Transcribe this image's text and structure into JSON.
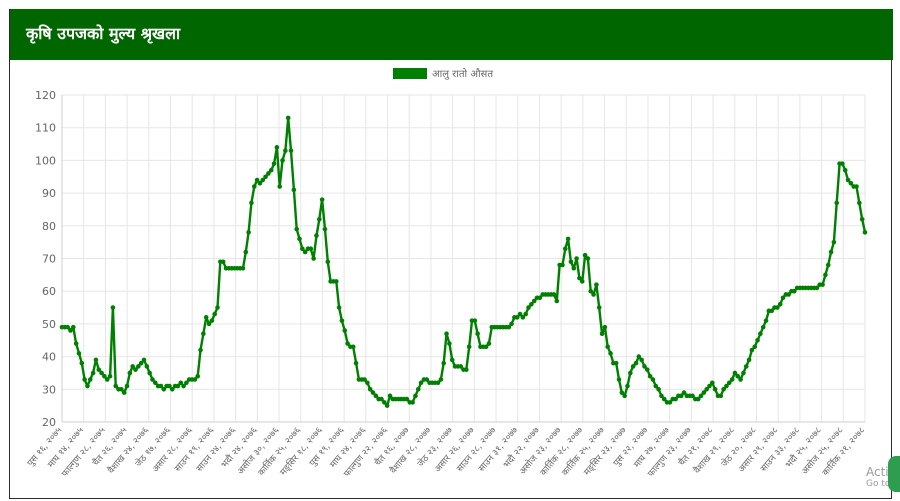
{
  "header": {
    "title": "कृषि उपजको मुल्य श्रृखला"
  },
  "colors": {
    "header_bg": "#006600",
    "series": "#008000",
    "grid": "#e6e6e6"
  },
  "watermark": {
    "line1": "Activ",
    "line2": "Go to"
  },
  "chart_data": {
    "type": "line",
    "title": "",
    "ylim": [
      20,
      120
    ],
    "yticks": [
      20,
      30,
      40,
      50,
      60,
      70,
      80,
      90,
      100,
      110,
      120
    ],
    "grid": true,
    "legend_position": "top-center",
    "series": [
      {
        "name": "आलु रातो औसत",
        "values": [
          49,
          49,
          49,
          48,
          49,
          44,
          41,
          38,
          33,
          31,
          33,
          35,
          39,
          36,
          35,
          34,
          33,
          34,
          55,
          31,
          30,
          30,
          29,
          31,
          35,
          37,
          36,
          37,
          38,
          39,
          37,
          35,
          33,
          32,
          31,
          31,
          30,
          31,
          31,
          30,
          31,
          31,
          32,
          31,
          32,
          33,
          33,
          33,
          34,
          42,
          47,
          52,
          50,
          51,
          53,
          55,
          69,
          69,
          67,
          67,
          67,
          67,
          67,
          67,
          67,
          72,
          78,
          87,
          92,
          94,
          93,
          94,
          95,
          96,
          97,
          99,
          104,
          92,
          100,
          103,
          113,
          103,
          91,
          79,
          76,
          73,
          72,
          73,
          73,
          70,
          77,
          82,
          88,
          79,
          69,
          63,
          63,
          63,
          55,
          51,
          48,
          44,
          43,
          43,
          38,
          33,
          33,
          33,
          32,
          30,
          29,
          28,
          27,
          27,
          26,
          25,
          28,
          27,
          27,
          27,
          27,
          27,
          27,
          26,
          26,
          28,
          30,
          32,
          33,
          33,
          32,
          32,
          32,
          32,
          33,
          38,
          47,
          44,
          39,
          37,
          37,
          37,
          36,
          36,
          43,
          51,
          51,
          47,
          43,
          43,
          43,
          44,
          49,
          49,
          49,
          49,
          49,
          49,
          49,
          50,
          52,
          52,
          53,
          52,
          53,
          55,
          56,
          57,
          58,
          58,
          59,
          59,
          59,
          59,
          59,
          57,
          68,
          68,
          73,
          76,
          69,
          67,
          70,
          64,
          63,
          71,
          70,
          60,
          59,
          62,
          55,
          47,
          49,
          43,
          41,
          38,
          38,
          33,
          29,
          28,
          31,
          35,
          37,
          38,
          40,
          39,
          37,
          36,
          34,
          33,
          31,
          30,
          28,
          27,
          26,
          26,
          27,
          27,
          28,
          28,
          29,
          28,
          28,
          28,
          27,
          27,
          28,
          29,
          30,
          31,
          32,
          30,
          28,
          28,
          30,
          31,
          32,
          33,
          35,
          34,
          33,
          35,
          37,
          39,
          42,
          43,
          45,
          47,
          49,
          51,
          54,
          54,
          55,
          55,
          56,
          58,
          59,
          59,
          60,
          60,
          61,
          61,
          61,
          61,
          61,
          61,
          61,
          61,
          62,
          62,
          65,
          68,
          72,
          75,
          87,
          99,
          99,
          97,
          94,
          93,
          92,
          92,
          87,
          82,
          78
        ]
      }
    ],
    "x_tick_labels": [
      "पुस १६, २०७५",
      "माघ १४, २०७५",
      "फाल्गुण २८, २०७५",
      "चैत २६, २०७५",
      "वैशाख २४, २०७६",
      "जेठ १७, २०७६",
      "असार २८, २०७६",
      "साउन १९, २०७६",
      "साउन २४, २०७६",
      "भदौ २४, २०७६",
      "असोज ३०, २०७६",
      "कार्तिक २५, २०७६",
      "मङ्सिर १८, २०७६",
      "पुस १९, २०७६",
      "माघ २४, २०७६",
      "फाल्गुण २२, २०७६",
      "चैत १६, २०७७",
      "वैशाख २८, २०७७",
      "जेठ २३, २०७७",
      "असार २६, २०७७",
      "साउन २८, २०७७",
      "साउन ३१, २०७७",
      "भदौ २२, २०७७",
      "असोज २३, २०७७",
      "कार्तिक २८, २०७७",
      "कार्तिक २५, २०७७",
      "मङ्सिर २३, २०७७",
      "पुस २२, २०७७",
      "माघ २७, २०७७",
      "फाल्गुण २३, २०७७",
      "चैत २१, २०७८",
      "वैशाख २९, २०७८",
      "जेठ २०, २०७८",
      "असार २९, २०७८",
      "साउन ३३, २०७८",
      "भदौ २५, २०७८",
      "असोज २५, २०७८",
      "कार्तिक २१, २०७८"
    ]
  }
}
